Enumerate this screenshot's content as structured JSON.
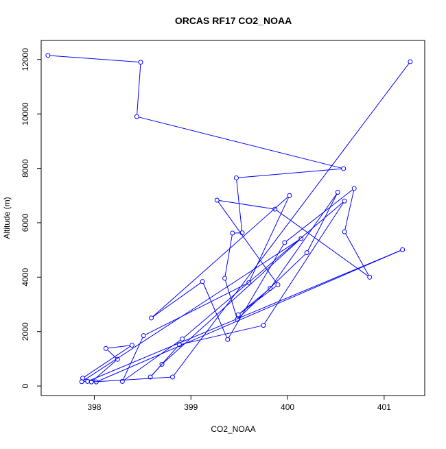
{
  "chart_data": {
    "type": "line",
    "title": "ORCAS RF17 CO2_NOAA",
    "xlabel": "CO2_NOAA",
    "ylabel": "Altitude (m)",
    "xlim": [
      397.45,
      401.42
    ],
    "ylim": [
      -350,
      12700
    ],
    "x_ticks": [
      398,
      399,
      400,
      401
    ],
    "y_ticks": [
      0,
      2000,
      4000,
      6000,
      8000,
      10000,
      12000
    ],
    "grid": false,
    "line_color": "#0000ff",
    "marker": "open-circle",
    "series": [
      {
        "x": [
          397.52,
          398.48,
          398.44,
          400.58,
          399.47,
          399.53,
          399.43,
          399.35,
          399.48,
          400.2,
          400.52,
          399.82,
          399.49,
          399.9,
          399.27,
          399.87,
          400.85,
          400.59,
          400.69,
          399.97,
          399.38,
          399.12,
          398.59,
          400.02,
          399.6,
          398.51,
          398.29,
          398.91,
          400.59,
          399.75,
          398.88,
          398.58,
          398.7,
          400.14,
          397.87,
          397.93,
          401.19,
          398.02,
          397.88,
          398.39,
          398.12,
          398.24,
          397.97,
          398.81,
          401.27
        ],
        "y": [
          12150,
          11900,
          9900,
          7990,
          7650,
          5630,
          5620,
          3960,
          2450,
          4900,
          7120,
          3590,
          2620,
          3720,
          6830,
          6500,
          4000,
          5670,
          7260,
          5270,
          1710,
          3840,
          2500,
          7000,
          3800,
          1850,
          170,
          1730,
          6800,
          2230,
          1520,
          330,
          800,
          5420,
          160,
          170,
          5010,
          150,
          290,
          1500,
          1380,
          980,
          150,
          330,
          11920
        ]
      }
    ]
  }
}
